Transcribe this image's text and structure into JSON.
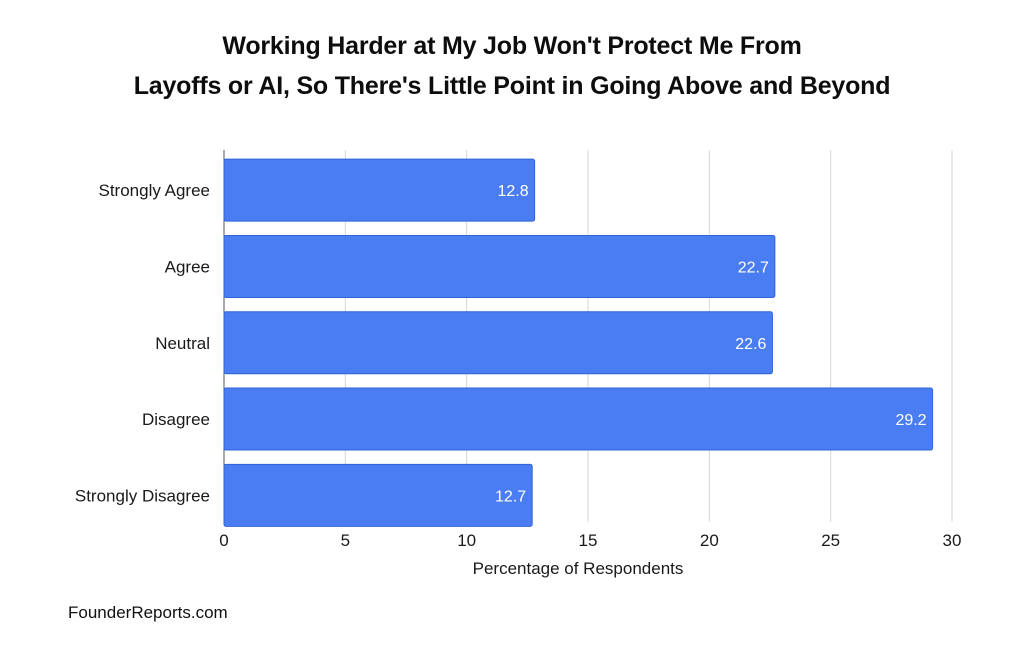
{
  "chart_data": {
    "type": "bar",
    "orientation": "horizontal",
    "title_lines": [
      "Working Harder at My Job Won't Protect Me From",
      "Layoffs or AI, So There's Little Point in Going Above and Beyond"
    ],
    "categories": [
      "Strongly Agree",
      "Agree",
      "Neutral",
      "Disagree",
      "Strongly Disagree"
    ],
    "values": [
      12.8,
      22.7,
      22.6,
      29.2,
      12.7
    ],
    "data_labels": [
      "12.8",
      "22.7",
      "22.6",
      "29.2",
      "12.7"
    ],
    "xlabel": "Percentage of Respondents",
    "ylabel": "",
    "xlim": [
      0,
      30
    ],
    "xticks": [
      0,
      5,
      10,
      15,
      20,
      25,
      30
    ],
    "grid": true,
    "legend": "none",
    "bar_color": "#4a7df2",
    "bar_edge_color": "#2f63d6",
    "grid_color": "#d6d6d6"
  },
  "footer": {
    "source": "FounderReports.com"
  }
}
